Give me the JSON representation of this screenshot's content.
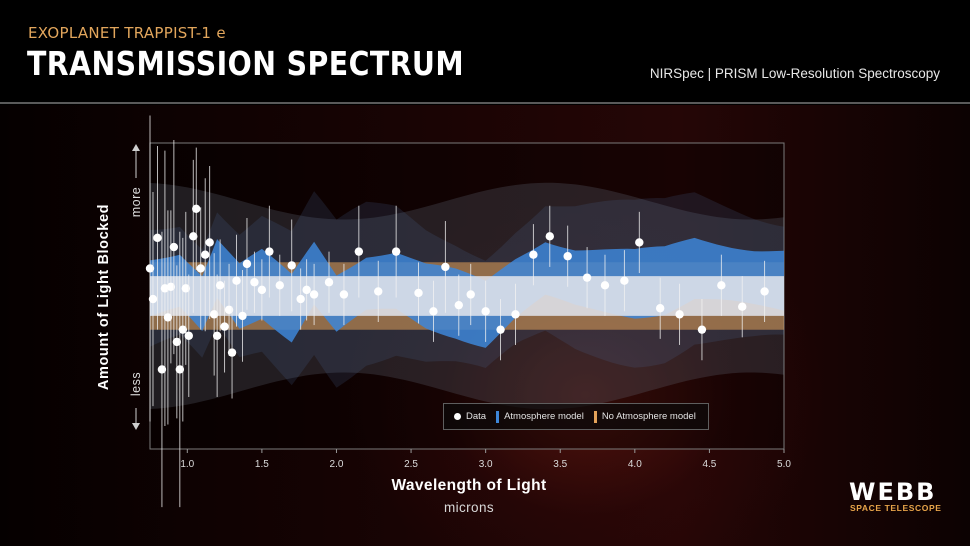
{
  "header": {
    "subtitle": "EXOPLANET TRAPPIST-1 e",
    "title": "TRANSMISSION SPECTRUM",
    "instrument": "NIRSpec | PRISM Low-Resolution Spectroscopy"
  },
  "branding": {
    "logo": "WEBB",
    "sub": "SPACE TELESCOPE"
  },
  "legend": {
    "data": "Data",
    "atmosphere": "Atmosphere model",
    "no_atmosphere": "No Atmosphere model"
  },
  "colors": {
    "atmosphere": "#3d86d8",
    "no_atmosphere": "#e4a25a",
    "data": "#ffffff",
    "accent": "#e2a65c"
  },
  "chart_data": {
    "type": "scatter",
    "xlabel": "Wavelength of Light",
    "xunit": "microns",
    "ylabel": "Amount of Light Blocked",
    "y_more": "more",
    "y_less": "less",
    "xlim": [
      0.75,
      5.0
    ],
    "ylim": [
      -1.0,
      1.0
    ],
    "xticks": [
      "1.0",
      "1.5",
      "2.0",
      "2.5",
      "3.0",
      "3.5",
      "4.0",
      "4.5",
      "5.0"
    ],
    "y_ticks_shown": false,
    "grid": false,
    "legend_position": "bottom-right",
    "series": [
      {
        "name": "Data",
        "points": [
          [
            0.75,
            0.18,
            1.0
          ],
          [
            0.77,
            -0.02,
            0.7
          ],
          [
            0.8,
            0.38,
            0.6
          ],
          [
            0.83,
            -0.48,
            0.9
          ],
          [
            0.85,
            0.05,
            0.9
          ],
          [
            0.87,
            -0.14,
            0.7
          ],
          [
            0.89,
            0.06,
            0.5
          ],
          [
            0.91,
            0.32,
            0.7
          ],
          [
            0.93,
            -0.3,
            0.5
          ],
          [
            0.95,
            -0.48,
            0.9
          ],
          [
            0.97,
            -0.22,
            0.6
          ],
          [
            0.99,
            0.05,
            0.5
          ],
          [
            1.01,
            -0.26,
            0.4
          ],
          [
            1.04,
            0.39,
            0.5
          ],
          [
            1.06,
            0.57,
            0.4
          ],
          [
            1.09,
            0.18,
            0.4
          ],
          [
            1.12,
            0.27,
            0.5
          ],
          [
            1.15,
            0.35,
            0.5
          ],
          [
            1.18,
            -0.12,
            0.4
          ],
          [
            1.2,
            -0.26,
            0.4
          ],
          [
            1.22,
            0.07,
            0.3
          ],
          [
            1.25,
            -0.2,
            0.3
          ],
          [
            1.28,
            -0.09,
            0.3
          ],
          [
            1.3,
            -0.37,
            0.3
          ],
          [
            1.33,
            0.1,
            0.3
          ],
          [
            1.37,
            -0.13,
            0.3
          ],
          [
            1.4,
            0.21,
            0.3
          ],
          [
            1.45,
            0.09,
            0.2
          ],
          [
            1.5,
            0.04,
            0.2
          ],
          [
            1.55,
            0.29,
            0.3
          ],
          [
            1.62,
            0.07,
            0.2
          ],
          [
            1.7,
            0.2,
            0.3
          ],
          [
            1.76,
            -0.02,
            0.2
          ],
          [
            1.8,
            0.04,
            0.2
          ],
          [
            1.85,
            0.01,
            0.2
          ],
          [
            1.95,
            0.09,
            0.2
          ],
          [
            2.05,
            0.01,
            0.2
          ],
          [
            2.15,
            0.29,
            0.3
          ],
          [
            2.28,
            0.03,
            0.2
          ],
          [
            2.4,
            0.29,
            0.3
          ],
          [
            2.55,
            0.02,
            0.2
          ],
          [
            2.65,
            -0.1,
            0.2
          ],
          [
            2.73,
            0.19,
            0.3
          ],
          [
            2.82,
            -0.06,
            0.2
          ],
          [
            2.9,
            0.01,
            0.2
          ],
          [
            3.0,
            -0.1,
            0.2
          ],
          [
            3.1,
            -0.22,
            0.2
          ],
          [
            3.2,
            -0.12,
            0.2
          ],
          [
            3.32,
            0.27,
            0.2
          ],
          [
            3.43,
            0.39,
            0.2
          ],
          [
            3.55,
            0.26,
            0.2
          ],
          [
            3.68,
            0.12,
            0.2
          ],
          [
            3.8,
            0.07,
            0.2
          ],
          [
            3.93,
            0.1,
            0.2
          ],
          [
            4.03,
            0.35,
            0.2
          ],
          [
            4.17,
            -0.08,
            0.2
          ],
          [
            4.3,
            -0.12,
            0.2
          ],
          [
            4.45,
            -0.22,
            0.2
          ],
          [
            4.58,
            0.07,
            0.2
          ],
          [
            4.72,
            -0.07,
            0.2
          ],
          [
            4.87,
            0.03,
            0.2
          ]
        ]
      },
      {
        "name": "Atmosphere model",
        "center": [
          [
            0.75,
            0.05
          ],
          [
            0.95,
            0.1
          ],
          [
            1.1,
            -0.05
          ],
          [
            1.2,
            0.18
          ],
          [
            1.35,
            0.0
          ],
          [
            1.5,
            0.08
          ],
          [
            1.7,
            -0.08
          ],
          [
            1.85,
            0.15
          ],
          [
            2.0,
            -0.05
          ],
          [
            2.2,
            0.08
          ],
          [
            2.4,
            0.1
          ],
          [
            2.6,
            0.0
          ],
          [
            2.8,
            -0.05
          ],
          [
            3.0,
            -0.12
          ],
          [
            3.2,
            0.05
          ],
          [
            3.4,
            0.18
          ],
          [
            3.6,
            0.12
          ],
          [
            3.8,
            0.1
          ],
          [
            4.0,
            0.08
          ],
          [
            4.2,
            0.1
          ],
          [
            4.4,
            0.18
          ],
          [
            4.6,
            0.15
          ],
          [
            4.8,
            0.12
          ],
          [
            5.0,
            0.1
          ]
        ]
      },
      {
        "name": "No Atmosphere model",
        "center": [
          [
            0.75,
            0.0
          ],
          [
            1.2,
            0.0
          ],
          [
            2.0,
            0.0
          ],
          [
            3.0,
            0.0
          ],
          [
            4.0,
            0.0
          ],
          [
            5.0,
            0.0
          ]
        ]
      }
    ]
  }
}
